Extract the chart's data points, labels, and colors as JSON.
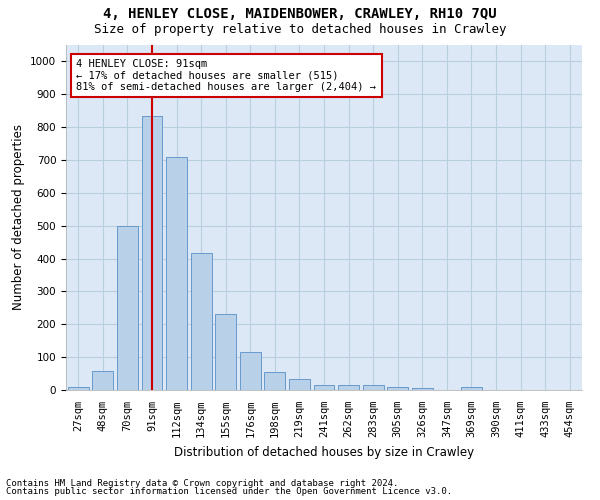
{
  "title": "4, HENLEY CLOSE, MAIDENBOWER, CRAWLEY, RH10 7QU",
  "subtitle": "Size of property relative to detached houses in Crawley",
  "xlabel": "Distribution of detached houses by size in Crawley",
  "ylabel": "Number of detached properties",
  "categories": [
    "27sqm",
    "48sqm",
    "70sqm",
    "91sqm",
    "112sqm",
    "134sqm",
    "155sqm",
    "176sqm",
    "198sqm",
    "219sqm",
    "241sqm",
    "262sqm",
    "283sqm",
    "305sqm",
    "326sqm",
    "347sqm",
    "369sqm",
    "390sqm",
    "411sqm",
    "433sqm",
    "454sqm"
  ],
  "values": [
    8,
    58,
    500,
    835,
    710,
    418,
    232,
    117,
    55,
    33,
    15,
    15,
    14,
    10,
    5,
    0,
    10,
    0,
    0,
    0,
    0
  ],
  "bar_color": "#b8d0e8",
  "bar_edge_color": "#6699cc",
  "vline_x_index": 3,
  "vline_color": "#cc0000",
  "annotation_line1": "4 HENLEY CLOSE: 91sqm",
  "annotation_line2": "← 17% of detached houses are smaller (515)",
  "annotation_line3": "81% of semi-detached houses are larger (2,404) →",
  "annotation_box_color": "#ffffff",
  "annotation_box_edge": "#cc0000",
  "ylim": [
    0,
    1050
  ],
  "yticks": [
    0,
    100,
    200,
    300,
    400,
    500,
    600,
    700,
    800,
    900,
    1000
  ],
  "footer_line1": "Contains HM Land Registry data © Crown copyright and database right 2024.",
  "footer_line2": "Contains public sector information licensed under the Open Government Licence v3.0.",
  "bg_color": "#ffffff",
  "plot_bg_color": "#dce8f5",
  "grid_color": "#b8cfe0",
  "title_fontsize": 10,
  "subtitle_fontsize": 9,
  "axis_label_fontsize": 8.5,
  "tick_fontsize": 7.5,
  "annotation_fontsize": 7.5,
  "footer_fontsize": 6.5
}
